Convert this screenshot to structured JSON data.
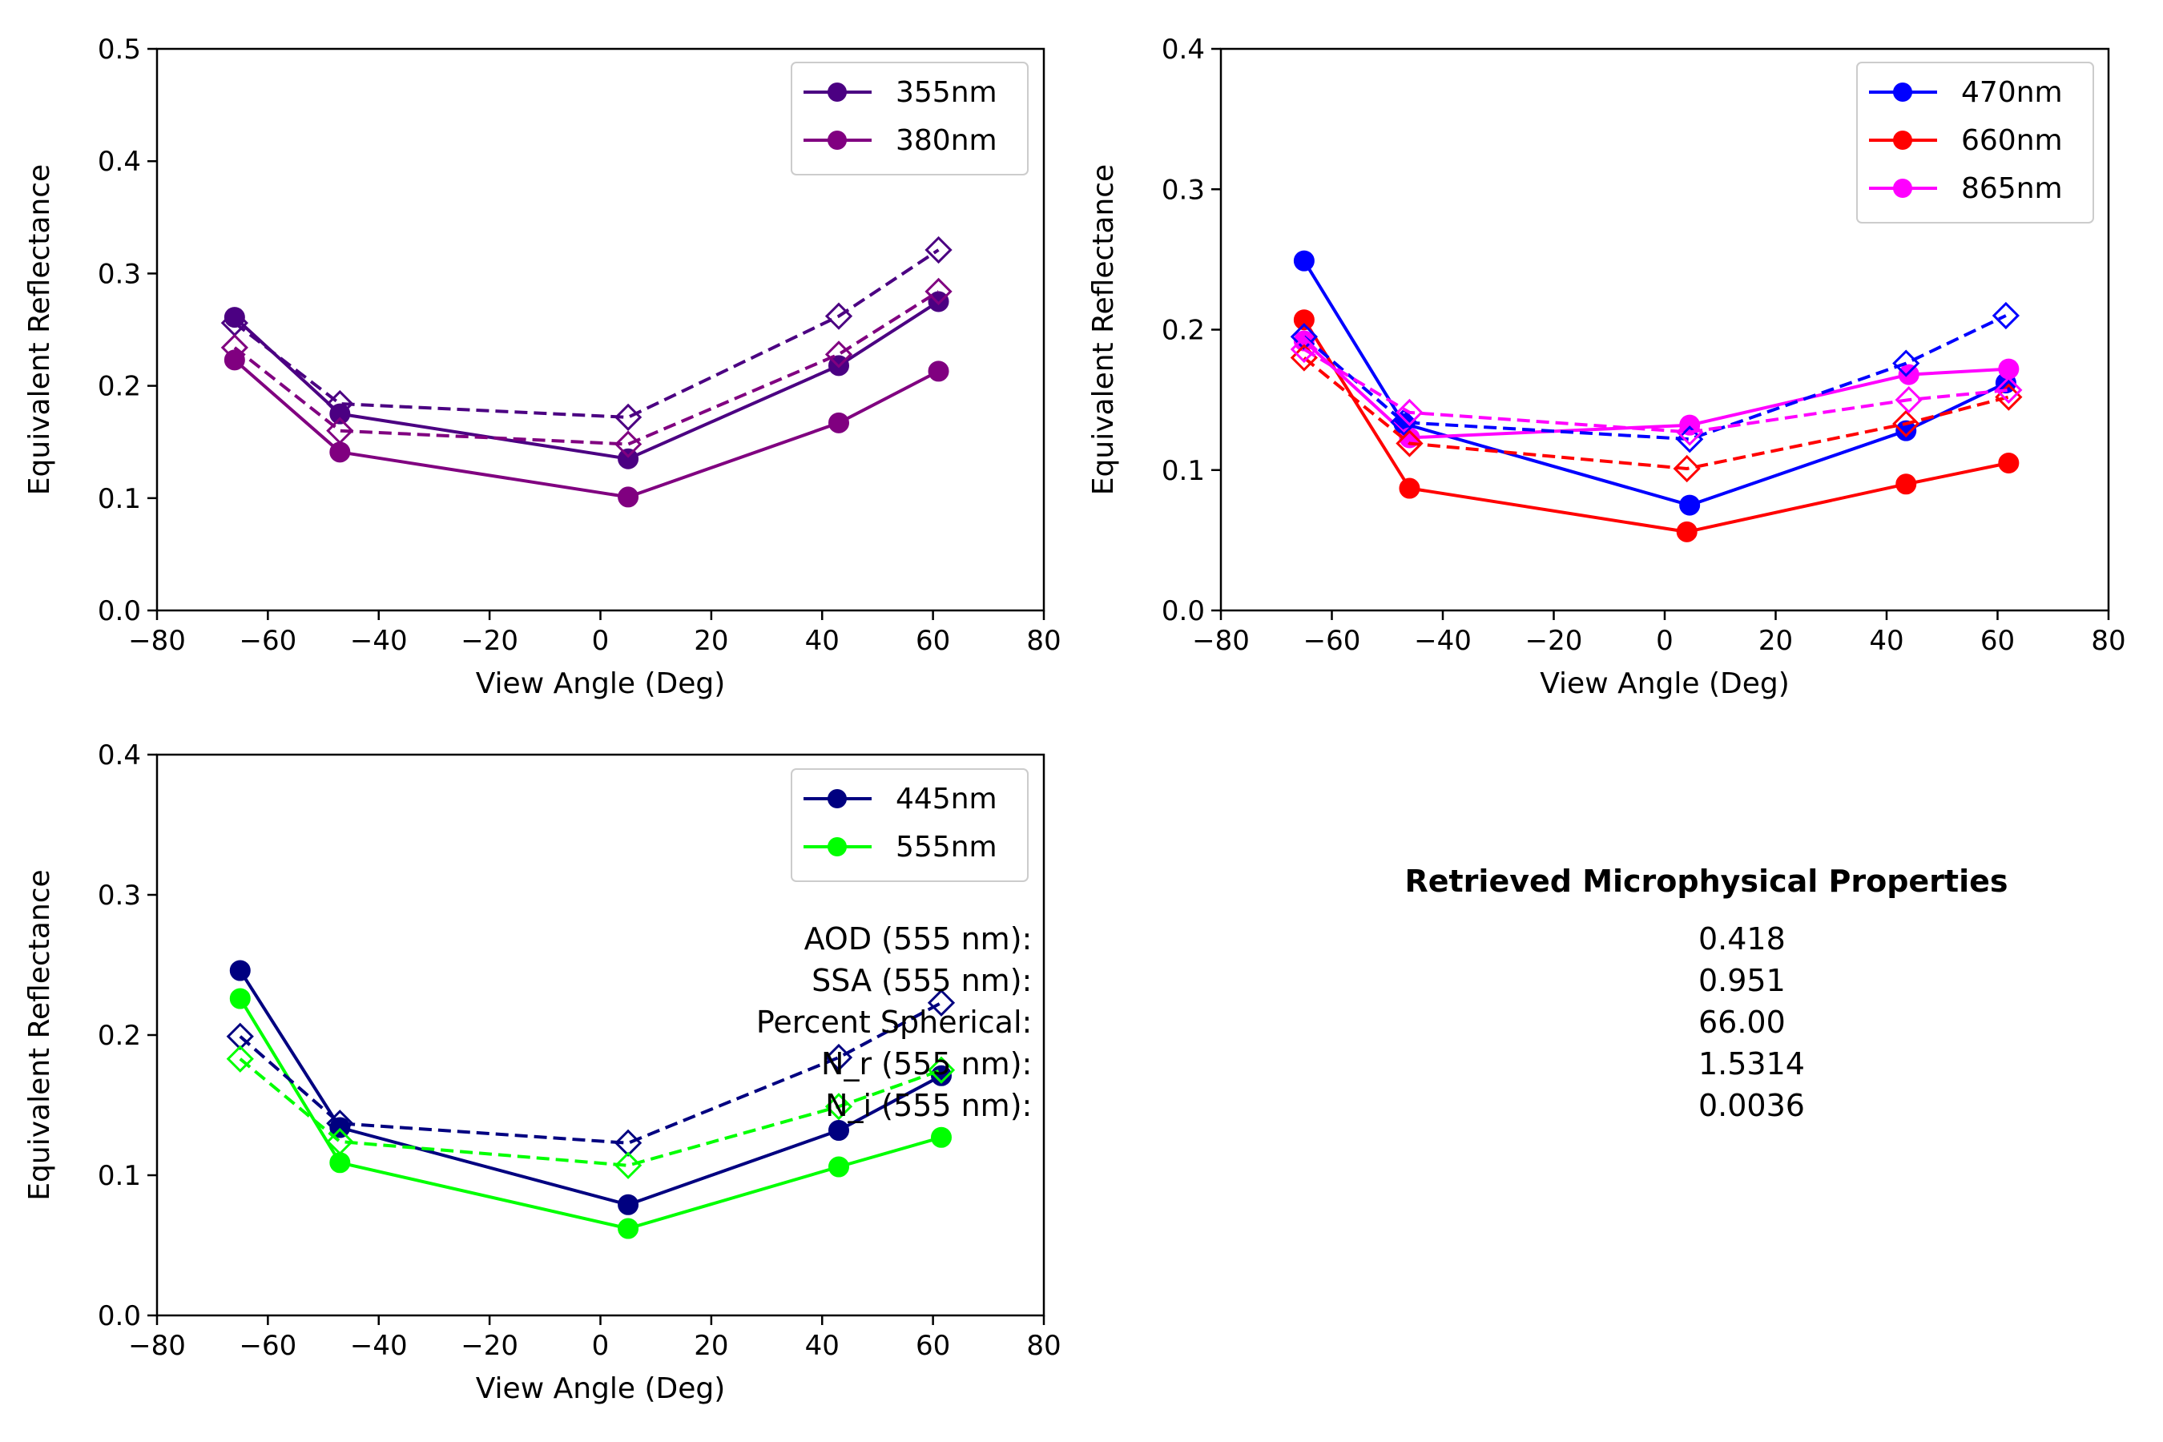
{
  "chart_data": [
    {
      "type": "line",
      "title": "",
      "xlabel": "View Angle (Deg)",
      "ylabel": "Equivalent Reflectance",
      "xlim": [
        -80,
        80
      ],
      "ylim": [
        0,
        0.5
      ],
      "xticks": [
        -80,
        -60,
        -40,
        -20,
        0,
        20,
        40,
        60,
        80
      ],
      "xtick_labels": [
        "−80",
        "−60",
        "−40",
        "−20",
        "0",
        "20",
        "40",
        "60",
        "80"
      ],
      "yticks": [
        0.0,
        0.1,
        0.2,
        0.3,
        0.4,
        0.5
      ],
      "ytick_labels": [
        "0.0",
        "0.1",
        "0.2",
        "0.3",
        "0.4",
        "0.5"
      ],
      "grid": false,
      "legend_position": "top-right",
      "series": [
        {
          "name": "355nm",
          "color": "#4b0082",
          "style": "solid",
          "marker": "circle",
          "x": [
            -66,
            -47,
            5,
            43,
            61
          ],
          "values": [
            0.261,
            0.175,
            0.135,
            0.218,
            0.275
          ]
        },
        {
          "name": "380nm",
          "color": "#800080",
          "style": "solid",
          "marker": "circle",
          "x": [
            -66,
            -47,
            5,
            43,
            61
          ],
          "values": [
            0.223,
            0.141,
            0.101,
            0.167,
            0.213
          ]
        },
        {
          "name": "",
          "color": "#4b0082",
          "style": "dashed",
          "marker": "diamond",
          "x": [
            -66,
            -47,
            5,
            43,
            61
          ],
          "values": [
            0.256,
            0.184,
            0.172,
            0.262,
            0.321
          ]
        },
        {
          "name": "",
          "color": "#800080",
          "style": "dashed",
          "marker": "diamond",
          "x": [
            -66,
            -47,
            5,
            43,
            61
          ],
          "values": [
            0.234,
            0.16,
            0.148,
            0.228,
            0.284
          ]
        }
      ]
    },
    {
      "type": "line",
      "title": "",
      "xlabel": "View Angle (Deg)",
      "ylabel": "Equivalent Reflectance",
      "xlim": [
        -80,
        80
      ],
      "ylim": [
        0,
        0.4
      ],
      "xticks": [
        -80,
        -60,
        -40,
        -20,
        0,
        20,
        40,
        60,
        80
      ],
      "xtick_labels": [
        "−80",
        "−60",
        "−40",
        "−20",
        "0",
        "20",
        "40",
        "60",
        "80"
      ],
      "yticks": [
        0.0,
        0.1,
        0.2,
        0.3,
        0.4
      ],
      "ytick_labels": [
        "0.0",
        "0.1",
        "0.2",
        "0.3",
        "0.4"
      ],
      "grid": false,
      "legend_position": "top-right",
      "series": [
        {
          "name": "470nm",
          "color": "#0000ff",
          "style": "solid",
          "marker": "circle",
          "x": [
            -65,
            -47,
            4.5,
            43.5,
            61.5
          ],
          "values": [
            0.249,
            0.133,
            0.075,
            0.128,
            0.162
          ]
        },
        {
          "name": "660nm",
          "color": "#ff0000",
          "style": "solid",
          "marker": "circle",
          "x": [
            -65,
            -46,
            4,
            43.5,
            62
          ],
          "values": [
            0.207,
            0.087,
            0.056,
            0.09,
            0.105
          ]
        },
        {
          "name": "865nm",
          "color": "#ff00ff",
          "style": "solid",
          "marker": "circle",
          "x": [
            -65,
            -46,
            4.5,
            44,
            62
          ],
          "values": [
            0.192,
            0.123,
            0.132,
            0.168,
            0.172
          ]
        },
        {
          "name": "",
          "color": "#0000ff",
          "style": "dashed",
          "marker": "diamond",
          "x": [
            -65,
            -47,
            4.5,
            43.5,
            61.5
          ],
          "values": [
            0.195,
            0.134,
            0.122,
            0.176,
            0.21
          ]
        },
        {
          "name": "",
          "color": "#ff0000",
          "style": "dashed",
          "marker": "diamond",
          "x": [
            -65,
            -46,
            4,
            43.5,
            62
          ],
          "values": [
            0.18,
            0.119,
            0.101,
            0.133,
            0.152
          ]
        },
        {
          "name": "",
          "color": "#ff00ff",
          "style": "dashed",
          "marker": "diamond",
          "x": [
            -65,
            -46,
            4.5,
            44,
            62
          ],
          "values": [
            0.186,
            0.141,
            0.127,
            0.15,
            0.157
          ]
        }
      ]
    },
    {
      "type": "line",
      "title": "",
      "xlabel": "View Angle (Deg)",
      "ylabel": "Equivalent Reflectance",
      "xlim": [
        -80,
        80
      ],
      "ylim": [
        0,
        0.4
      ],
      "xticks": [
        -80,
        -60,
        -40,
        -20,
        0,
        20,
        40,
        60,
        80
      ],
      "xtick_labels": [
        "−80",
        "−60",
        "−40",
        "−20",
        "0",
        "20",
        "40",
        "60",
        "80"
      ],
      "yticks": [
        0.0,
        0.1,
        0.2,
        0.3,
        0.4
      ],
      "ytick_labels": [
        "0.0",
        "0.1",
        "0.2",
        "0.3",
        "0.4"
      ],
      "grid": false,
      "legend_position": "top-right",
      "series": [
        {
          "name": "445nm",
          "color": "#000080",
          "style": "solid",
          "marker": "circle",
          "x": [
            -65,
            -47,
            5,
            43,
            61.5
          ],
          "values": [
            0.246,
            0.134,
            0.079,
            0.132,
            0.171
          ]
        },
        {
          "name": "555nm",
          "color": "#00ff00",
          "style": "solid",
          "marker": "circle",
          "x": [
            -65,
            -47,
            5,
            43,
            61.5
          ],
          "values": [
            0.226,
            0.109,
            0.062,
            0.106,
            0.127
          ]
        },
        {
          "name": "",
          "color": "#000080",
          "style": "dashed",
          "marker": "diamond",
          "x": [
            -65,
            -47,
            5,
            43,
            61.5
          ],
          "values": [
            0.199,
            0.137,
            0.123,
            0.184,
            0.223
          ]
        },
        {
          "name": "",
          "color": "#00ff00",
          "style": "dashed",
          "marker": "diamond",
          "x": [
            -65,
            -47,
            5,
            43,
            61.5
          ],
          "values": [
            0.183,
            0.124,
            0.107,
            0.149,
            0.175
          ]
        }
      ]
    }
  ],
  "properties_panel": {
    "title": "Retrieved Microphysical Properties",
    "rows": [
      {
        "label": "AOD (555 nm):",
        "value": "0.418"
      },
      {
        "label": "SSA (555 nm):",
        "value": "0.951"
      },
      {
        "label": "Percent Spherical:",
        "value": "66.00"
      },
      {
        "label": "N_r (555 nm):",
        "value": "1.5314"
      },
      {
        "label": "N_i (555 nm):",
        "value": "0.0036"
      }
    ]
  }
}
